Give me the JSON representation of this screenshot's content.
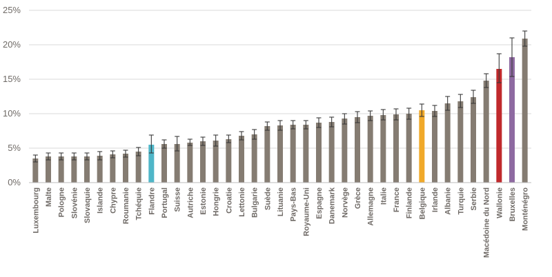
{
  "chart_data": {
    "type": "bar",
    "title": "",
    "xlabel": "",
    "ylabel": "",
    "ylim": [
      0,
      25
    ],
    "y_tick_labels": [
      "0%",
      "5%",
      "10%",
      "15%",
      "20%",
      "25%"
    ],
    "y_ticks": [
      0,
      5,
      10,
      15,
      20,
      25
    ],
    "grid": true,
    "legend": "none",
    "colors": {
      "default": "#857c72",
      "Flandre": "#4fb6c8",
      "Belgique": "#f0a92a",
      "Wallonie": "#c0292c",
      "Bruxelles": "#8e6aa1",
      "error_bar": "#3a3a3a",
      "grid": "#d9d9d9",
      "axis": "#bdbdbd",
      "text": "#6f6a66"
    },
    "categories": [
      "Luxembourg",
      "Malte",
      "Pologne",
      "Slovénie",
      "Slovaquie",
      "Islande",
      "Chypre",
      "Roumanie",
      "Tchéquie",
      "Flandre",
      "Portugal",
      "Suisse",
      "Autriche",
      "Estonie",
      "Hongrie",
      "Croatie",
      "Lettonie",
      "Bulgarie",
      "Suède",
      "Lituanie",
      "Pays-Bas",
      "Royaume-Uni",
      "Espagne",
      "Danemark",
      "Norvège",
      "Grèce",
      "Allemagne",
      "Italie",
      "France",
      "Finlande",
      "Belgique",
      "Irlande",
      "Albanie",
      "Turquie",
      "Serbie",
      "Macédoine du Nord",
      "Wallonie",
      "Bruxelles",
      "Monténégro"
    ],
    "values": [
      3.5,
      3.8,
      3.8,
      3.8,
      3.8,
      3.9,
      4.1,
      4.2,
      4.5,
      5.5,
      5.6,
      5.6,
      5.8,
      6.0,
      6.1,
      6.3,
      6.8,
      7.0,
      8.2,
      8.3,
      8.4,
      8.4,
      8.7,
      8.8,
      9.3,
      9.5,
      9.7,
      9.8,
      9.9,
      10.0,
      10.5,
      10.4,
      11.5,
      11.8,
      12.4,
      14.8,
      16.5,
      18.2,
      20.9
    ],
    "error_low": [
      3.0,
      3.3,
      3.3,
      3.3,
      3.3,
      3.3,
      3.6,
      3.7,
      3.9,
      4.3,
      5.0,
      4.6,
      5.4,
      5.4,
      5.3,
      5.8,
      6.2,
      6.3,
      7.6,
      7.6,
      7.8,
      7.8,
      8.0,
      8.1,
      8.5,
      8.7,
      9.0,
      9.1,
      9.1,
      9.2,
      9.6,
      9.6,
      10.5,
      10.9,
      11.5,
      13.8,
      14.5,
      15.4,
      19.8
    ],
    "error_high": [
      4.0,
      4.3,
      4.3,
      4.3,
      4.3,
      4.5,
      4.6,
      4.7,
      5.1,
      6.9,
      6.2,
      6.7,
      6.3,
      6.6,
      6.9,
      6.9,
      7.4,
      7.7,
      8.8,
      9.0,
      9.0,
      9.0,
      9.4,
      9.5,
      10.0,
      10.3,
      10.4,
      10.6,
      10.7,
      10.8,
      11.4,
      11.2,
      12.5,
      12.8,
      13.4,
      15.8,
      18.7,
      21.0,
      22.0
    ]
  }
}
